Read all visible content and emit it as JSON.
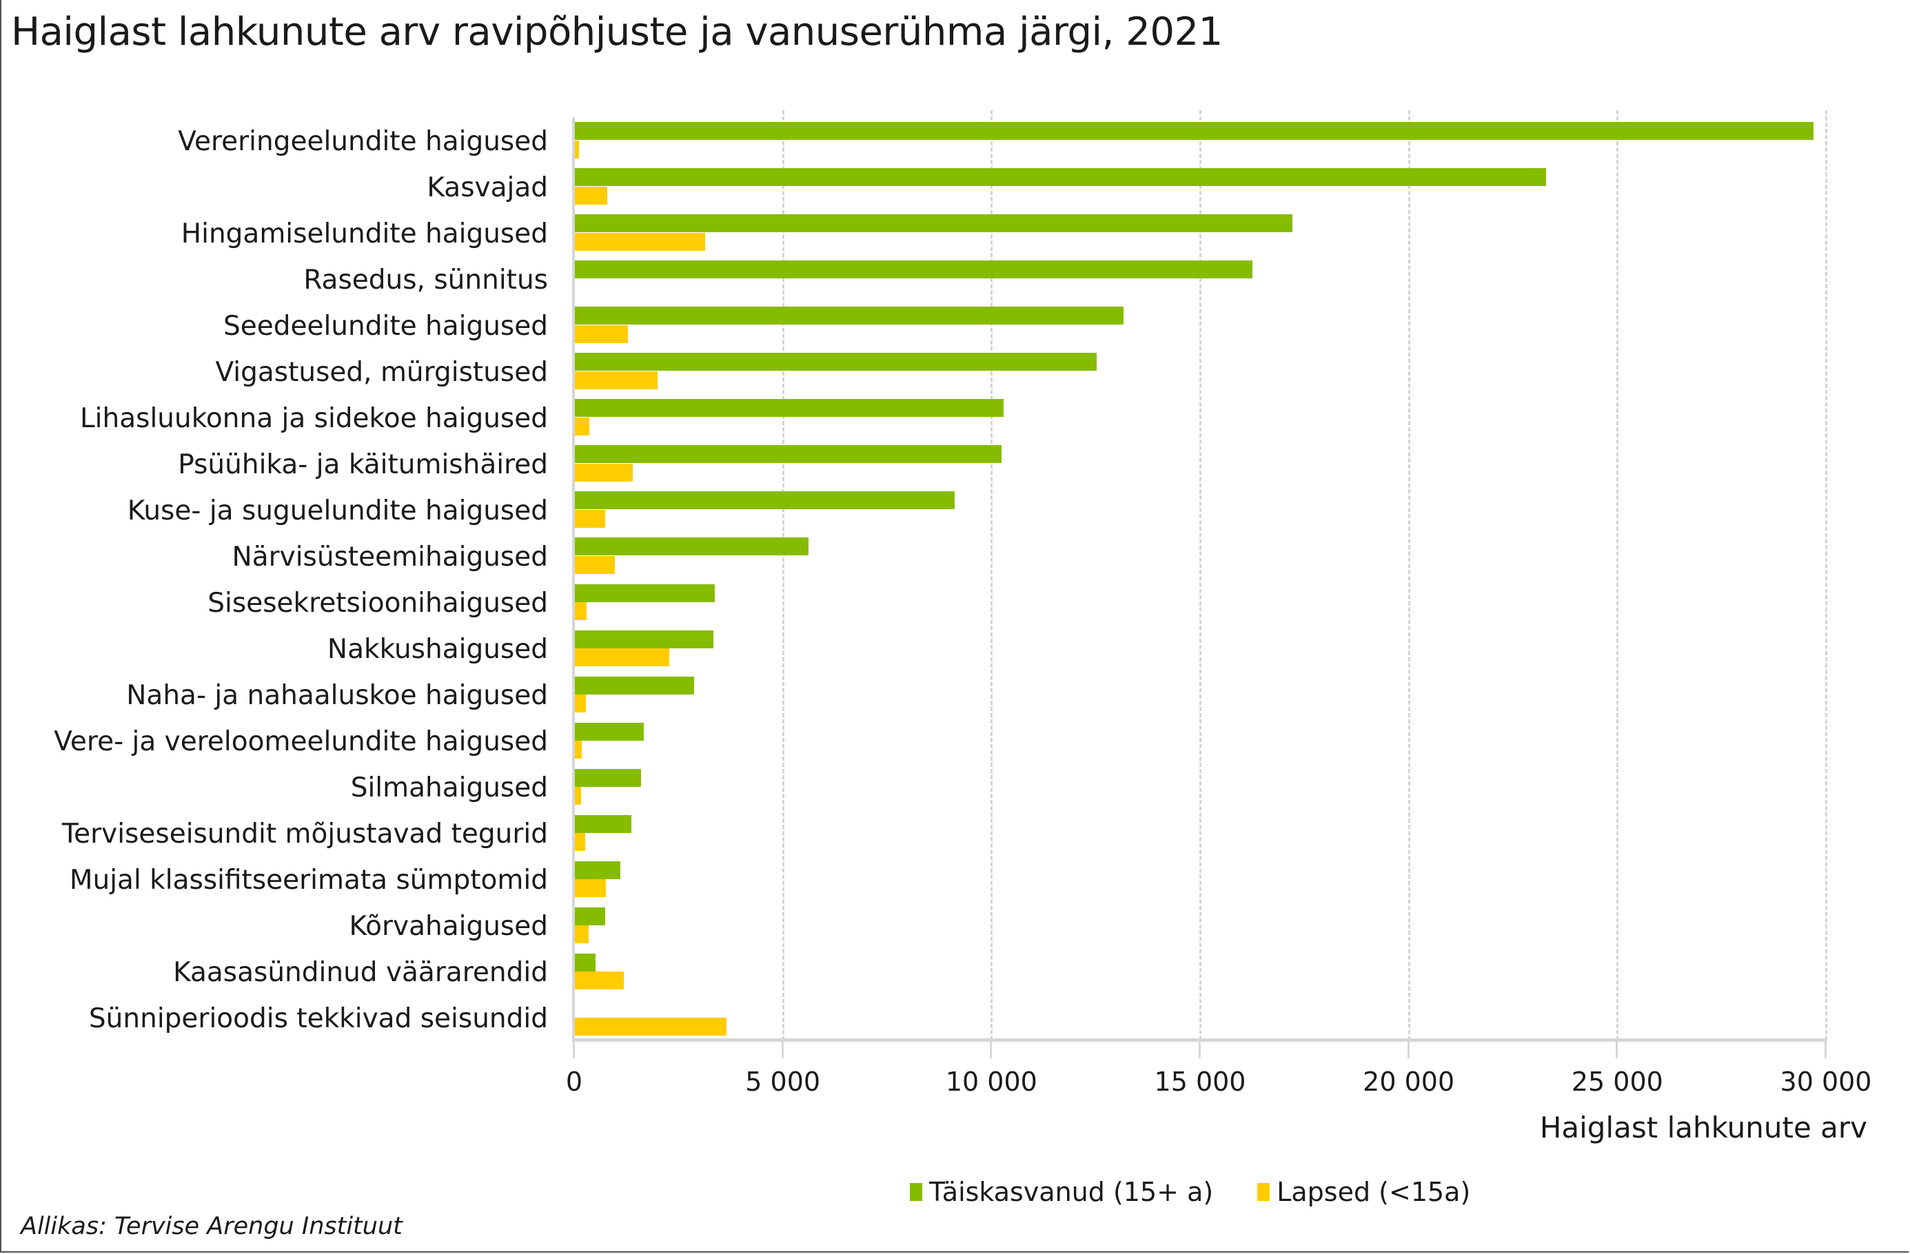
{
  "title": "Haiglast lahkunute arv ravipõhjuste ja vanuserühma järgi, 2021",
  "source": "Allikas: Tervise Arengu Instituut",
  "colors": {
    "adults": "#86BC00",
    "children": "#FFCC00",
    "grid": "#D4D4D4"
  },
  "legend": {
    "adults": "Täiskasvanud (15+ a)",
    "children": "Lapsed (<15a)"
  },
  "x_axis": {
    "title": "Haiglast lahkunute arv",
    "ticks": [
      "0",
      "5 000",
      "10 000",
      "15 000",
      "20 000",
      "25 000",
      "30 000"
    ]
  },
  "chart_data": {
    "type": "bar",
    "orientation": "horizontal",
    "title": "Haiglast lahkunute arv ravipõhjuste ja vanuserühma järgi, 2021",
    "xlabel": "Haiglast lahkunute arv",
    "ylabel": "",
    "xlim": [
      0,
      30000
    ],
    "grid": true,
    "legend_position": "bottom",
    "categories": [
      "Vereringeelundite haigused",
      "Kasvajad",
      "Hingamiselundite haigused",
      "Rasedus, sünnitus",
      "Seedeelundite haigused",
      "Vigastused, mürgistused",
      "Lihasluukonna ja sidekoe haigused",
      "Psüühika- ja käitumishäired",
      "Kuse- ja suguelundite haigused",
      "Närvisüsteemihaigused",
      "Sisesekretsioonihaigused",
      "Nakkushaigused",
      "Naha- ja nahaaluskoe haigused",
      "Vere- ja vereloomeelundite haigused",
      "Silmahaigused",
      "Terviseseisundit mõjustavad tegurid",
      "Mujal klassifitseerimata sümptomid",
      "Kõrvahaigused",
      "Kaasasündinud väärarendid",
      "Sünniperioodis tekkivad seisundid"
    ],
    "series": [
      {
        "name": "Täiskasvanud (15+ a)",
        "color": "#86BC00",
        "values": [
          29700,
          23300,
          17220,
          16250,
          13170,
          12520,
          10300,
          10250,
          9120,
          5610,
          3370,
          3340,
          2880,
          1670,
          1600,
          1370,
          1100,
          740,
          510,
          0
        ]
      },
      {
        "name": "Lapsed (<15a)",
        "color": "#FFCC00",
        "values": [
          120,
          790,
          3140,
          0,
          1290,
          2000,
          360,
          1400,
          740,
          970,
          290,
          2280,
          280,
          180,
          160,
          260,
          760,
          340,
          1190,
          3650
        ]
      }
    ]
  }
}
